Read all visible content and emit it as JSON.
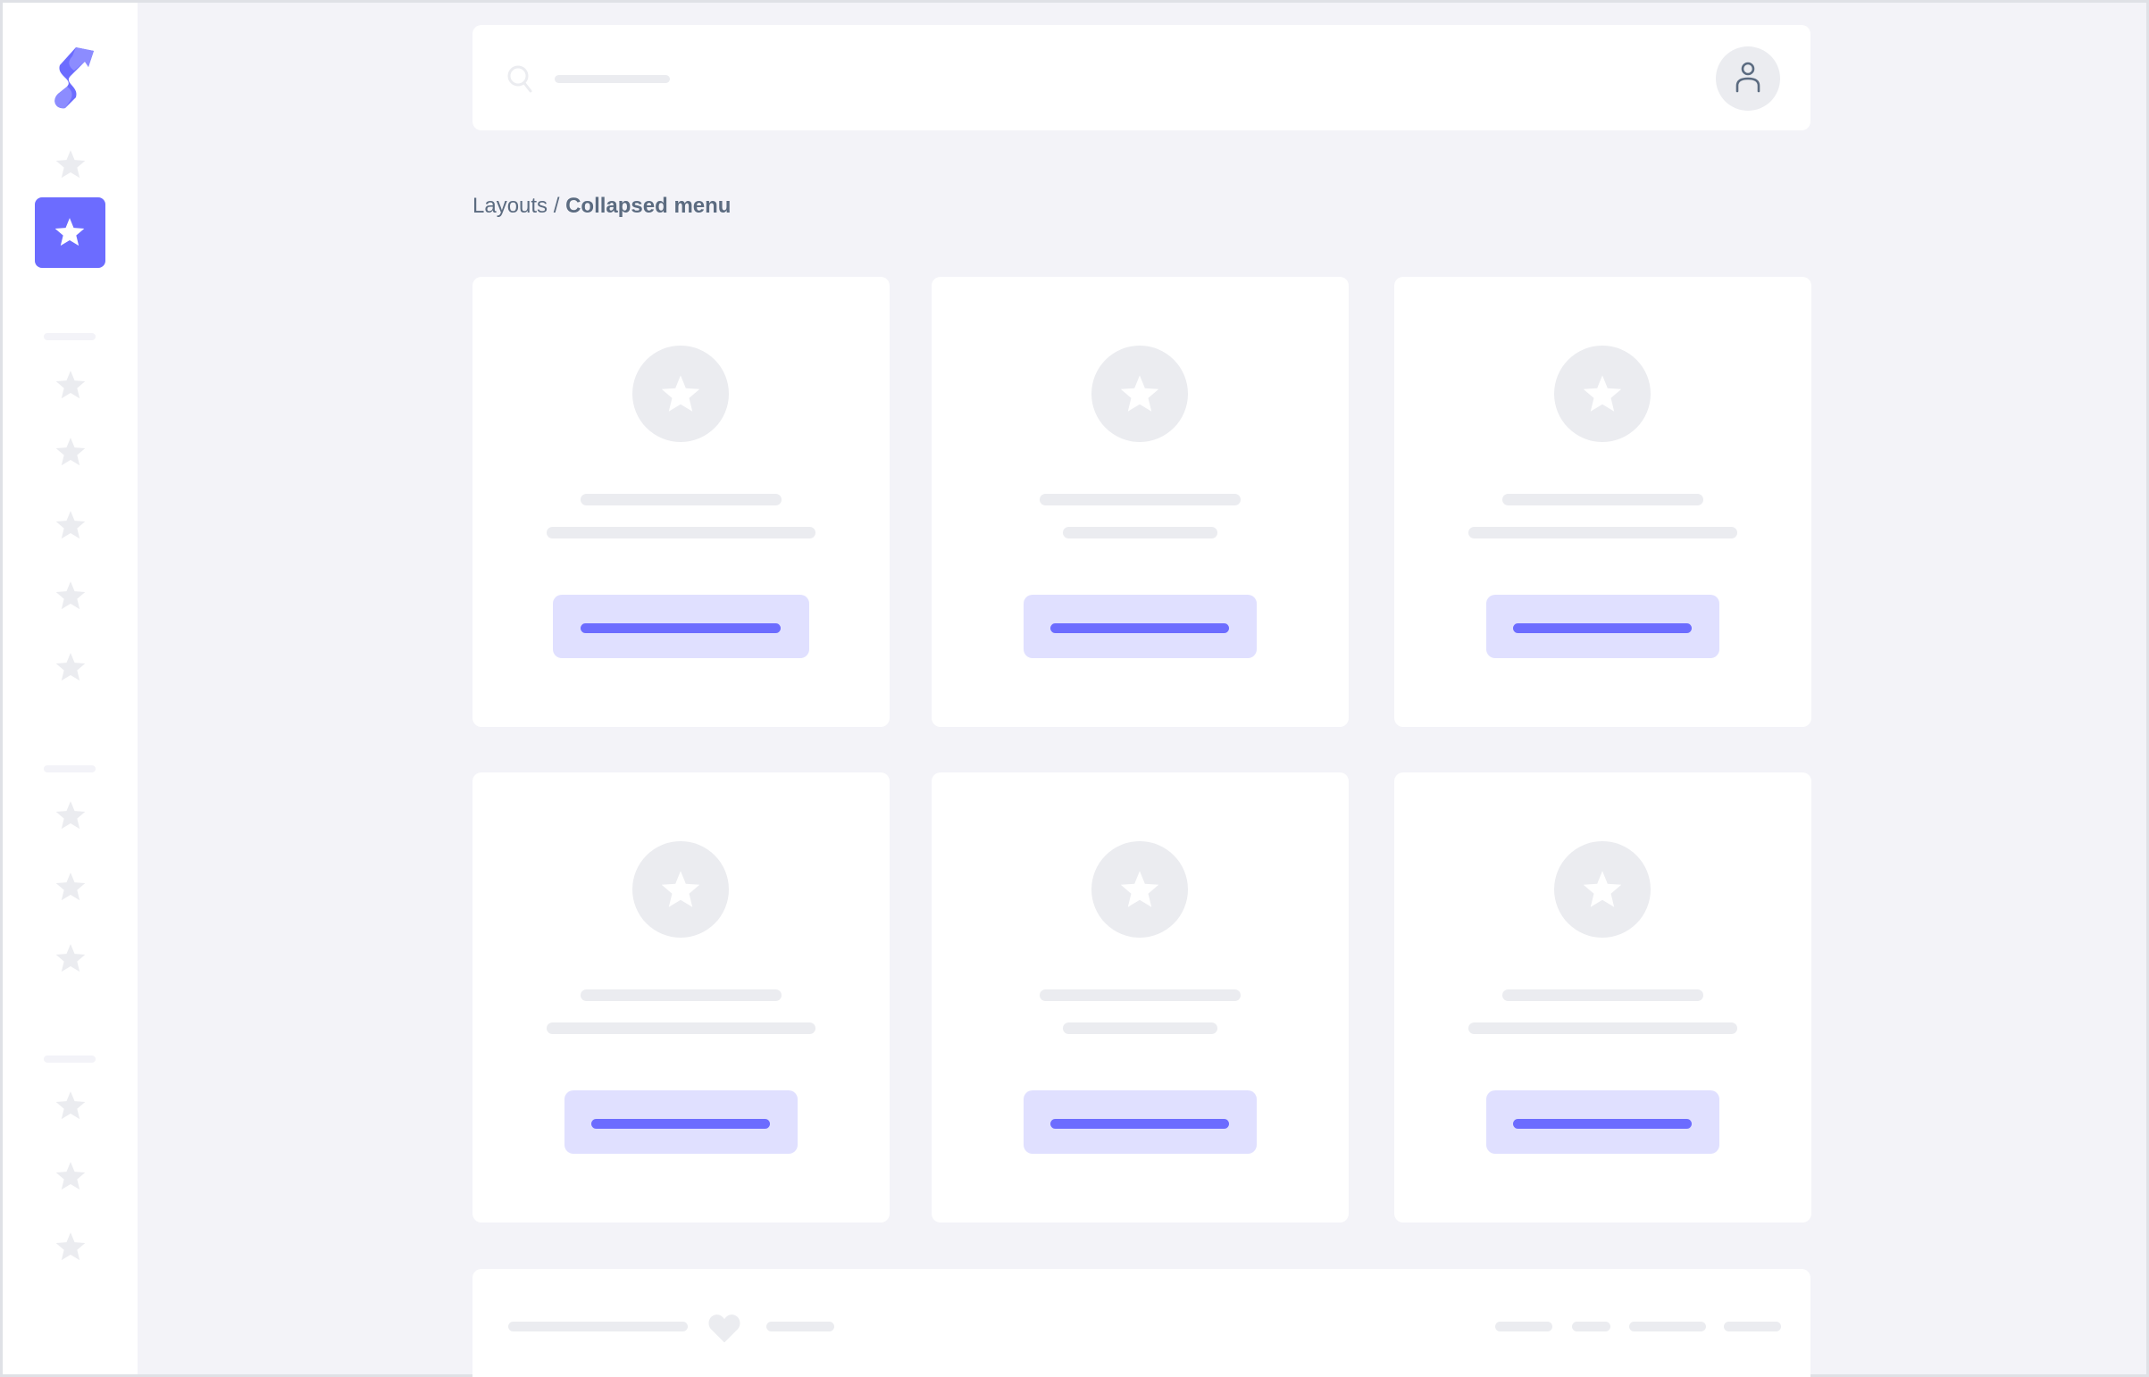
{
  "breadcrumb": {
    "parent": "Layouts",
    "separator": "/",
    "current": "Collapsed menu"
  },
  "colors": {
    "accent": "#6c6cff",
    "accent_light": "#e0e0ff",
    "skeleton": "#ebecf0",
    "background": "#f3f3f8"
  },
  "sidebar": {
    "logo_icon": "brand-s-logo",
    "items": [
      {
        "icon": "star-icon",
        "active": false
      },
      {
        "icon": "star-icon",
        "active": true
      },
      {
        "icon": "star-icon"
      },
      {
        "icon": "star-icon"
      },
      {
        "icon": "star-icon"
      },
      {
        "icon": "star-icon"
      },
      {
        "icon": "star-icon"
      },
      {
        "icon": "star-icon"
      },
      {
        "icon": "star-icon"
      },
      {
        "icon": "star-icon"
      },
      {
        "icon": "star-icon"
      },
      {
        "icon": "star-icon"
      },
      {
        "icon": "star-icon"
      }
    ]
  },
  "header": {
    "search_icon": "search-icon",
    "avatar_icon": "user-icon"
  },
  "cards": [
    {
      "icon": "star-icon"
    },
    {
      "icon": "star-icon"
    },
    {
      "icon": "star-icon"
    },
    {
      "icon": "star-icon"
    },
    {
      "icon": "star-icon"
    },
    {
      "icon": "star-icon"
    }
  ],
  "footer": {
    "icon": "heart-icon"
  }
}
